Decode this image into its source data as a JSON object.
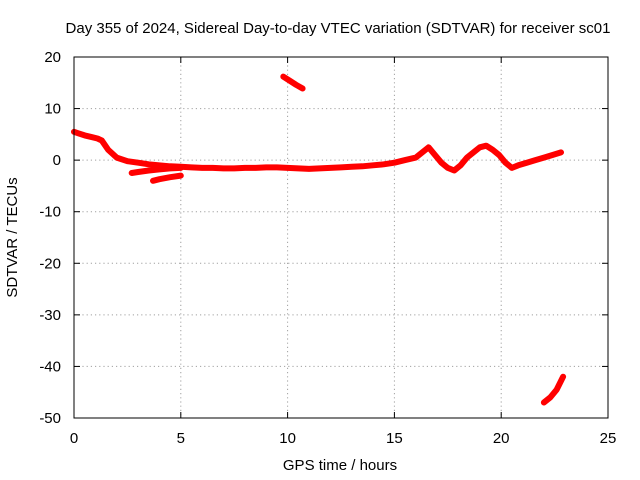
{
  "chart_data": {
    "type": "line",
    "title": "Day 355 of 2024, Sidereal Day-to-day VTEC variation (SDTVAR) for receiver sc01",
    "xlabel": "GPS time / hours",
    "ylabel": "SDTVAR / TECUs",
    "xlim": [
      0,
      25
    ],
    "ylim": [
      -50,
      20
    ],
    "xticks": [
      0,
      5,
      10,
      15,
      20,
      25
    ],
    "yticks": [
      -50,
      -40,
      -30,
      -20,
      -10,
      0,
      10,
      20
    ],
    "xtick_labels": [
      "0",
      "5",
      "10",
      "15",
      "20",
      "25"
    ],
    "ytick_labels": [
      "-50",
      "-40",
      "-30",
      "-20",
      "-10",
      "0",
      "10",
      "20"
    ],
    "grid": true,
    "series_color": "#ff0000",
    "series": [
      {
        "name": "main-trace",
        "x": [
          0,
          0.2,
          0.5,
          0.8,
          1.1,
          1.3,
          1.6,
          2.0,
          2.5,
          3.0,
          3.5,
          4.0,
          4.5,
          5.0,
          5.5,
          6.0,
          6.5,
          7.0,
          7.5,
          8.0,
          8.5,
          9.0,
          9.5,
          10.0,
          10.5,
          11.0,
          11.5,
          12.0,
          12.5,
          13.0,
          13.5,
          14.0,
          14.5,
          15.0,
          15.5,
          16.0,
          16.3,
          16.6,
          16.9,
          17.2,
          17.5,
          17.8,
          18.1,
          18.4,
          18.7,
          19.0,
          19.3,
          19.6,
          19.9,
          20.2,
          20.5,
          20.8,
          21.2,
          21.6,
          22.0,
          22.4,
          22.8
        ],
        "y": [
          5.5,
          5.2,
          4.8,
          4.5,
          4.2,
          3.8,
          2.0,
          0.5,
          -0.2,
          -0.5,
          -0.8,
          -1.0,
          -1.2,
          -1.3,
          -1.4,
          -1.5,
          -1.5,
          -1.6,
          -1.6,
          -1.5,
          -1.5,
          -1.4,
          -1.4,
          -1.5,
          -1.6,
          -1.7,
          -1.6,
          -1.5,
          -1.4,
          -1.3,
          -1.2,
          -1.0,
          -0.8,
          -0.5,
          0,
          0.5,
          1.5,
          2.5,
          1.0,
          -0.5,
          -1.5,
          -2.0,
          -1.0,
          0.5,
          1.5,
          2.5,
          2.8,
          2.0,
          1.0,
          -0.5,
          -1.5,
          -1.0,
          -0.5,
          0,
          0.5,
          1.0,
          1.5
        ]
      },
      {
        "name": "lower-branch",
        "x": [
          2.7,
          3.0,
          3.5,
          4.0,
          4.5,
          5.0
        ],
        "y": [
          -2.5,
          -2.3,
          -2.0,
          -1.8,
          -1.6,
          -1.5
        ]
      },
      {
        "name": "lower-branch-2",
        "x": [
          3.7,
          4.0,
          4.5,
          5.0
        ],
        "y": [
          -4.0,
          -3.7,
          -3.3,
          -3.0
        ]
      },
      {
        "name": "upper-segment",
        "x": [
          9.8,
          10.1,
          10.4,
          10.7
        ],
        "y": [
          16.2,
          15.4,
          14.6,
          13.9
        ]
      },
      {
        "name": "bottom-segment",
        "x": [
          22.0,
          22.3,
          22.6,
          22.9
        ],
        "y": [
          -47.0,
          -46.0,
          -44.5,
          -42.0
        ]
      }
    ]
  }
}
